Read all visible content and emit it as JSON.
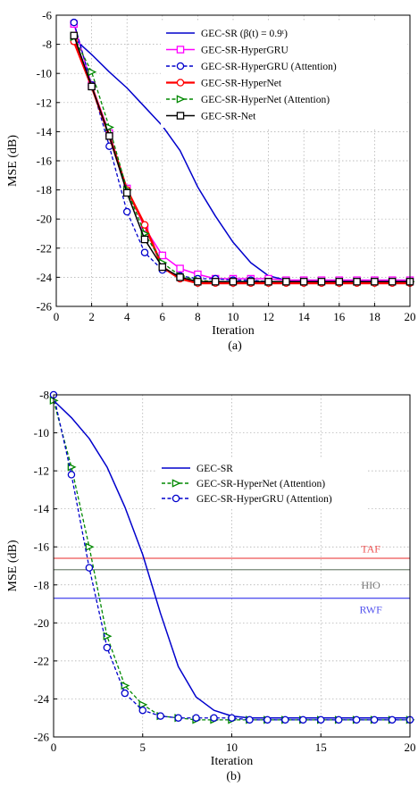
{
  "chart_data": [
    {
      "type": "line",
      "caption": "(a)",
      "xlabel": "Iteration",
      "ylabel": "MSE (dB)",
      "xlim": [
        0,
        20
      ],
      "ylim": [
        -26,
        -6
      ],
      "xticks": [
        "0",
        "2",
        "4",
        "6",
        "8",
        "10",
        "12",
        "14",
        "16",
        "18",
        "20"
      ],
      "yticks": [
        "-6",
        "-8",
        "-10",
        "-12",
        "-14",
        "-16",
        "-18",
        "-20",
        "-22",
        "-24",
        "-26"
      ],
      "grid": true,
      "legend_position": "top-right",
      "series": [
        {
          "name": "GEC-SR (β(t) = 0.9ᵗ)",
          "color": "#0000cc",
          "style": "solid",
          "marker": "none",
          "x": [
            1,
            2,
            3,
            4,
            5,
            6,
            7,
            8,
            9,
            10,
            11,
            12,
            13,
            14,
            15,
            16,
            17,
            18,
            19,
            20
          ],
          "y": [
            -7.6,
            -8.7,
            -9.9,
            -11.0,
            -12.3,
            -13.6,
            -15.3,
            -17.8,
            -19.8,
            -21.6,
            -23.0,
            -23.9,
            -24.2,
            -24.2,
            -24.2,
            -24.2,
            -24.2,
            -24.2,
            -24.2,
            -24.2
          ]
        },
        {
          "name": "GEC-SR-HyperGRU",
          "color": "#ff00ff",
          "style": "solid",
          "marker": "square",
          "x": [
            1,
            2,
            3,
            4,
            5,
            6,
            7,
            8,
            9,
            10,
            11,
            12,
            13,
            14,
            15,
            16,
            17,
            18,
            19,
            20
          ],
          "y": [
            -6.6,
            -10.8,
            -14.1,
            -17.9,
            -20.6,
            -22.5,
            -23.4,
            -23.8,
            -24.1,
            -24.1,
            -24.1,
            -24.1,
            -24.2,
            -24.2,
            -24.2,
            -24.2,
            -24.2,
            -24.2,
            -24.2,
            -24.2
          ]
        },
        {
          "name": "GEC-SR-HyperGRU (Attention)",
          "color": "#0000cc",
          "style": "dashed",
          "marker": "circle",
          "x": [
            1,
            2,
            3,
            4,
            5,
            6,
            7,
            8,
            9,
            10,
            11,
            12,
            13,
            14,
            15,
            16,
            17,
            18,
            19,
            20
          ],
          "y": [
            -6.5,
            -10.8,
            -15.0,
            -19.5,
            -22.3,
            -23.5,
            -23.9,
            -24.1,
            -24.1,
            -24.2,
            -24.2,
            -24.3,
            -24.3,
            -24.3,
            -24.3,
            -24.3,
            -24.3,
            -24.3,
            -24.3,
            -24.3
          ]
        },
        {
          "name": "GEC-SR-HyperNet",
          "color": "#ff0000",
          "style": "solid",
          "marker": "circle",
          "x": [
            1,
            2,
            3,
            4,
            5,
            6,
            7,
            8,
            9,
            10,
            11,
            12,
            13,
            14,
            15,
            16,
            17,
            18,
            19,
            20
          ],
          "y": [
            -7.8,
            -10.9,
            -14.3,
            -18.0,
            -20.4,
            -23.3,
            -24.1,
            -24.4,
            -24.4,
            -24.4,
            -24.4,
            -24.4,
            -24.4,
            -24.4,
            -24.4,
            -24.4,
            -24.4,
            -24.4,
            -24.4,
            -24.4
          ]
        },
        {
          "name": "GEC-SR-HyperNet (Attention)",
          "color": "#008800",
          "style": "dashed",
          "marker": "triangle-right",
          "x": [
            1,
            2,
            3,
            4,
            5,
            6,
            7,
            8,
            9,
            10,
            11,
            12,
            13,
            14,
            15,
            16,
            17,
            18,
            19,
            20
          ],
          "y": [
            -7.5,
            -9.9,
            -13.7,
            -18.0,
            -21.0,
            -23.0,
            -23.9,
            -24.2,
            -24.3,
            -24.3,
            -24.3,
            -24.3,
            -24.3,
            -24.3,
            -24.3,
            -24.3,
            -24.3,
            -24.3,
            -24.3,
            -24.3
          ]
        },
        {
          "name": "GEC-SR-Net",
          "color": "#000000",
          "style": "solid",
          "marker": "square",
          "x": [
            1,
            2,
            3,
            4,
            5,
            6,
            7,
            8,
            9,
            10,
            11,
            12,
            13,
            14,
            15,
            16,
            17,
            18,
            19,
            20
          ],
          "y": [
            -7.4,
            -10.9,
            -14.3,
            -18.2,
            -21.4,
            -23.3,
            -24.0,
            -24.3,
            -24.3,
            -24.3,
            -24.3,
            -24.3,
            -24.3,
            -24.3,
            -24.3,
            -24.3,
            -24.3,
            -24.3,
            -24.3,
            -24.3
          ]
        }
      ]
    },
    {
      "type": "line",
      "caption": "(b)",
      "xlabel": "Iteration",
      "ylabel": "MSE (dB)",
      "xlim": [
        0,
        20
      ],
      "ylim": [
        -26,
        -8
      ],
      "xticks": [
        "0",
        "5",
        "10",
        "15",
        "20"
      ],
      "yticks": [
        "-8",
        "-10",
        "-12",
        "-14",
        "-16",
        "-18",
        "-20",
        "-22",
        "-24",
        "-26"
      ],
      "grid": true,
      "legend_position": "top-right",
      "series": [
        {
          "name": "GEC-SR",
          "color": "#0000cc",
          "style": "solid",
          "marker": "none",
          "x": [
            0,
            1,
            2,
            3,
            4,
            5,
            6,
            7,
            8,
            9,
            10,
            11,
            12,
            13,
            14,
            15,
            16,
            17,
            18,
            19,
            20
          ],
          "y": [
            -8.3,
            -9.2,
            -10.3,
            -11.8,
            -13.9,
            -16.4,
            -19.5,
            -22.3,
            -23.9,
            -24.6,
            -24.9,
            -25.0,
            -25.0,
            -25.0,
            -25.0,
            -25.0,
            -25.0,
            -25.0,
            -25.0,
            -25.0,
            -25.0
          ]
        },
        {
          "name": "GEC-SR-HyperNet (Attention)",
          "color": "#008800",
          "style": "dashed",
          "marker": "triangle-right",
          "x": [
            0,
            1,
            2,
            3,
            4,
            5,
            6,
            7,
            8,
            9,
            10,
            11,
            12,
            13,
            14,
            15,
            16,
            17,
            18,
            19,
            20
          ],
          "y": [
            -8.3,
            -11.8,
            -16.0,
            -20.7,
            -23.3,
            -24.3,
            -24.9,
            -25.0,
            -25.1,
            -25.1,
            -25.1,
            -25.1,
            -25.1,
            -25.1,
            -25.1,
            -25.1,
            -25.1,
            -25.1,
            -25.1,
            -25.1,
            -25.1
          ]
        },
        {
          "name": "GEC-SR-HyperGRU (Attention)",
          "color": "#0000cc",
          "style": "dashed",
          "marker": "circle",
          "x": [
            0,
            1,
            2,
            3,
            4,
            5,
            6,
            7,
            8,
            9,
            10,
            11,
            12,
            13,
            14,
            15,
            16,
            17,
            18,
            19,
            20
          ],
          "y": [
            -8.0,
            -12.2,
            -17.1,
            -21.3,
            -23.7,
            -24.6,
            -24.9,
            -25.0,
            -25.0,
            -25.0,
            -25.0,
            -25.1,
            -25.1,
            -25.1,
            -25.1,
            -25.1,
            -25.1,
            -25.1,
            -25.1,
            -25.1,
            -25.1
          ]
        }
      ],
      "reference_lines": [
        {
          "label": "TAF",
          "y": -16.6,
          "color": "#ee5555"
        },
        {
          "label": "",
          "y": -17.2,
          "color": "#778877"
        },
        {
          "label": "HIO",
          "y": null,
          "color": "#777777"
        },
        {
          "label": "RWF",
          "y": -18.7,
          "color": "#5555ee"
        }
      ]
    }
  ]
}
